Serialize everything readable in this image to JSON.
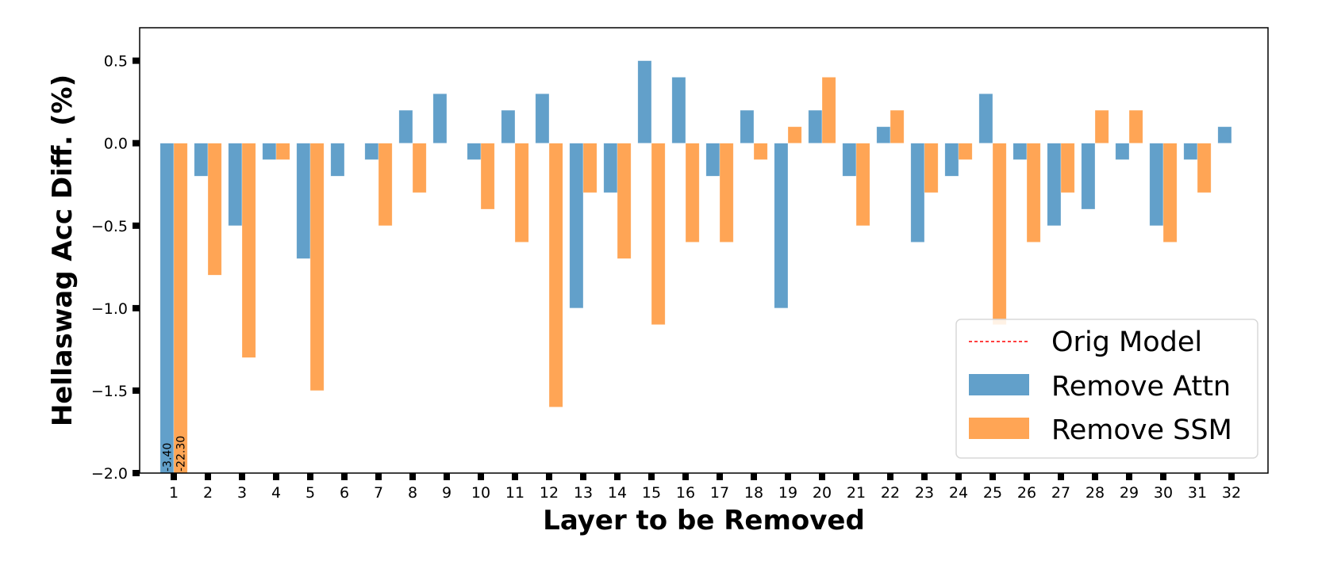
{
  "chart_data": {
    "type": "bar",
    "title": "",
    "xlabel": "Layer to be Removed",
    "ylabel": "Hellaswag Acc Diff. (%)",
    "ylim": [
      -2.0,
      0.7
    ],
    "yticks": [
      -2.0,
      -1.5,
      -1.0,
      -0.5,
      0.0,
      0.5
    ],
    "ytick_labels": [
      "−2.0",
      "−1.5",
      "−1.0",
      "−0.5",
      "0.0",
      "0.5"
    ],
    "grid": false,
    "legend_position": "lower right",
    "categories": [
      "1",
      "2",
      "3",
      "4",
      "5",
      "6",
      "7",
      "8",
      "9",
      "10",
      "11",
      "12",
      "13",
      "14",
      "15",
      "16",
      "17",
      "18",
      "19",
      "20",
      "21",
      "22",
      "23",
      "24",
      "25",
      "26",
      "27",
      "28",
      "29",
      "30",
      "31",
      "32"
    ],
    "series": [
      {
        "name": "Remove Attn",
        "color": "#62a0ca",
        "values": [
          -3.4,
          -0.2,
          -0.5,
          -0.1,
          -0.7,
          -0.2,
          -0.1,
          0.2,
          0.3,
          -0.1,
          0.2,
          0.3,
          -1.0,
          -0.3,
          0.5,
          0.4,
          -0.2,
          0.2,
          -1.0,
          0.2,
          -0.2,
          0.1,
          -0.6,
          -0.2,
          0.3,
          -0.1,
          -0.5,
          -0.4,
          -0.1,
          -0.5,
          -0.1,
          0.1
        ]
      },
      {
        "name": "Remove SSM",
        "color": "#ffa555",
        "values": [
          -22.3,
          -0.8,
          -1.3,
          -0.1,
          -1.5,
          0.0,
          -0.5,
          -0.3,
          0.0,
          -0.4,
          -0.6,
          -1.6,
          -0.3,
          -0.7,
          -1.1,
          -0.6,
          -0.6,
          -0.1,
          0.1,
          0.4,
          -0.5,
          0.2,
          -0.3,
          -0.1,
          -1.1,
          -0.6,
          -0.3,
          0.2,
          0.2,
          -0.6,
          -0.3,
          0.0
        ]
      }
    ],
    "reference_line": {
      "name": "Orig Model",
      "value": 0.0,
      "color": "#ff0000",
      "style": "dashed"
    },
    "annotations": [
      {
        "category": "1",
        "series": "Remove Attn",
        "text": "-3.40"
      },
      {
        "category": "1",
        "series": "Remove SSM",
        "text": "-22.30"
      }
    ]
  },
  "legend": {
    "items": [
      {
        "label": "Orig Model",
        "kind": "line",
        "color": "#ff0000"
      },
      {
        "label": "Remove Attn",
        "kind": "patch",
        "color": "#62a0ca"
      },
      {
        "label": "Remove SSM",
        "kind": "patch",
        "color": "#ffa555"
      }
    ]
  }
}
